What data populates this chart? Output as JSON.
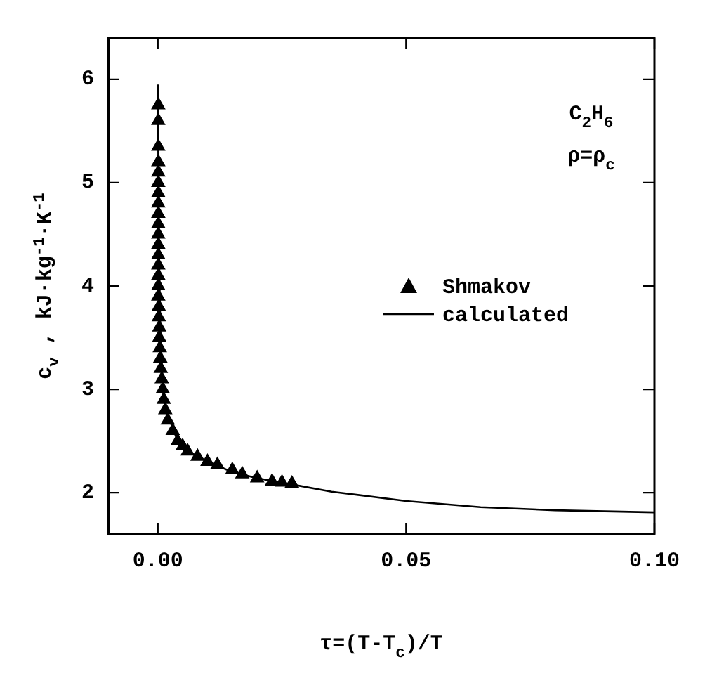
{
  "chart_data": {
    "type": "scatter",
    "xlabel": "τ=(T-T$_{c}$)/T",
    "ylabel": "c$_{v}$ , kJ·kg$^{-1}$·K$^{-1}$",
    "annotations": [
      "C$_{2}$H$_{6}$",
      "ρ=ρ$_{c}$"
    ],
    "xlim": [
      -0.01,
      0.1
    ],
    "ylim": [
      1.6,
      6.4
    ],
    "xticks": [
      {
        "value": 0,
        "label": "0.00"
      },
      {
        "value": 0.05,
        "label": "0.05"
      },
      {
        "value": 0.1,
        "label": "0.10"
      }
    ],
    "yticks": [
      2,
      3,
      4,
      5,
      6
    ],
    "grid": false,
    "legend": "right",
    "series": [
      {
        "name": "Shmakov",
        "marker": "triangle",
        "color": "#000000",
        "x": [
          0.0001,
          0.0001,
          0.0001,
          0.0001,
          0.0001,
          0.0001,
          0.0001,
          0.0001,
          0.0001,
          0.0001,
          0.0001,
          0.0001,
          0.0001,
          0.0001,
          0.0001,
          0.0001,
          0.0001,
          0.0002,
          0.0002,
          0.0003,
          0.0003,
          0.0004,
          0.0005,
          0.0006,
          0.0008,
          0.001,
          0.0012,
          0.0015,
          0.002,
          0.003,
          0.004,
          0.005,
          0.006,
          0.008,
          0.01,
          0.012,
          0.015,
          0.017,
          0.02,
          0.023,
          0.025,
          0.027
        ],
        "values": [
          5.75,
          5.6,
          5.35,
          5.2,
          5.1,
          5.0,
          4.9,
          4.8,
          4.7,
          4.6,
          4.5,
          4.4,
          4.3,
          4.2,
          4.1,
          4.0,
          3.9,
          3.8,
          3.7,
          3.6,
          3.5,
          3.4,
          3.3,
          3.2,
          3.1,
          3.0,
          2.9,
          2.8,
          2.7,
          2.6,
          2.5,
          2.45,
          2.4,
          2.35,
          2.3,
          2.27,
          2.22,
          2.18,
          2.14,
          2.11,
          2.1,
          2.09
        ]
      },
      {
        "name": "calculated",
        "type": "line",
        "marker": "none",
        "line_style": "solid",
        "color": "#000000",
        "x": [
          0,
          0.0002,
          0.0005,
          0.001,
          0.002,
          0.004,
          0.007,
          0.01,
          0.015,
          0.02,
          0.027,
          0.035,
          0.05,
          0.065,
          0.08,
          0.1
        ],
        "values": [
          5.95,
          4.5,
          3.6,
          3.0,
          2.75,
          2.5,
          2.38,
          2.3,
          2.2,
          2.14,
          2.08,
          2.01,
          1.92,
          1.86,
          1.83,
          1.81
        ]
      }
    ]
  }
}
